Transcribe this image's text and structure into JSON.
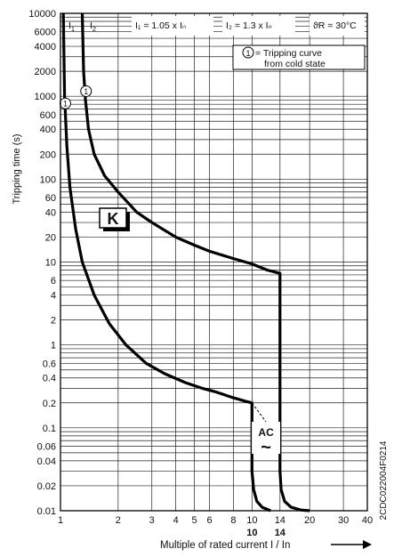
{
  "chart_data": {
    "type": "line",
    "title": "",
    "xlabel": "Multiple of rated current I / In",
    "ylabel": "Tripping time (s)",
    "x_scale": "log",
    "y_scale": "log",
    "xlim": [
      1,
      40
    ],
    "ylim": [
      0.01,
      10000
    ],
    "grid": true,
    "x_ticks": [
      "1",
      "2",
      "3",
      "4",
      "5",
      "6",
      "8",
      "10",
      "14",
      "20",
      "30",
      "40"
    ],
    "x_ticks_bold": [
      "10",
      "14"
    ],
    "y_ticks": [
      "0.01",
      "0.02",
      "0.04",
      "0.06",
      "0.1",
      "0.2",
      "0.4",
      "0.6",
      "1",
      "2",
      "4",
      "6",
      "10",
      "20",
      "40",
      "60",
      "100",
      "200",
      "400",
      "600",
      "1000",
      "2000",
      "4000",
      "6000",
      "10000"
    ],
    "header": {
      "i1_label": "I",
      "i1_sub": "1",
      "i2_label": "I",
      "i2_sub": "2",
      "eq1": "I₁ = 1.05 x Iₙ",
      "eq2": "I₂ = 1.3 x Iₙ",
      "temp": "ϑR = 30°C"
    },
    "legend": {
      "marker": "1",
      "line1": "= Tripping curve",
      "line2": "from cold state"
    },
    "curve_marker": "1",
    "characteristic": "K",
    "ac_label": "AC",
    "ac_symbol": "~",
    "side_code": "2CDC022004F0214",
    "series": [
      {
        "name": "lower",
        "x": [
          1.035,
          1.05,
          1.08,
          1.12,
          1.2,
          1.3,
          1.5,
          1.8,
          2.2,
          2.8,
          3.5,
          4.5,
          5.5,
          6.5,
          8,
          9.2,
          10,
          10,
          10.2,
          10.6,
          11.3,
          12.5
        ],
        "y": [
          10000,
          1000,
          250,
          80,
          25,
          10,
          4,
          1.8,
          1.0,
          0.6,
          0.45,
          0.35,
          0.3,
          0.27,
          0.23,
          0.21,
          0.2,
          0.03,
          0.018,
          0.013,
          0.011,
          0.01
        ]
      },
      {
        "name": "upper",
        "x": [
          1.3,
          1.32,
          1.35,
          1.4,
          1.5,
          1.7,
          2.0,
          2.5,
          3,
          4,
          5,
          6,
          8,
          10,
          12,
          14,
          14,
          14.2,
          14.8,
          16,
          18,
          20
        ],
        "y": [
          10000,
          2000,
          900,
          400,
          200,
          110,
          70,
          40,
          30,
          20,
          16,
          13.5,
          11,
          9.5,
          8,
          7.3,
          0.03,
          0.018,
          0.013,
          0.011,
          0.0102,
          0.01
        ]
      },
      {
        "name": "dashed",
        "x": [
          10,
          14
        ],
        "y": [
          0.2,
          0.07
        ]
      }
    ]
  }
}
